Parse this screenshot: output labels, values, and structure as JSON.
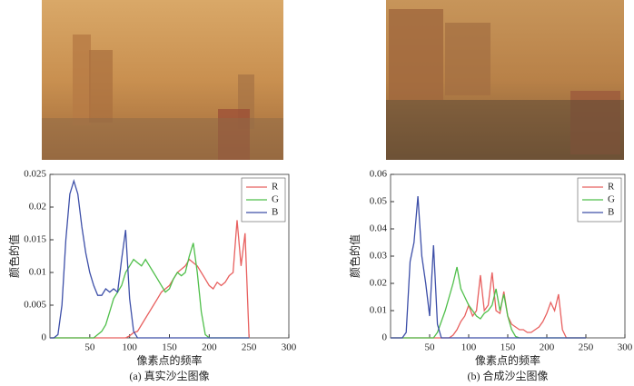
{
  "chart_data": [
    {
      "type": "line",
      "caption": "(a) 真实沙尘图像",
      "x_label": "像素点的频率",
      "y_label": "颜色的值",
      "x": [
        0,
        5,
        10,
        15,
        20,
        25,
        30,
        35,
        40,
        45,
        50,
        55,
        60,
        65,
        70,
        75,
        80,
        85,
        90,
        95,
        100,
        105,
        110,
        115,
        120,
        125,
        130,
        135,
        140,
        145,
        150,
        155,
        160,
        165,
        170,
        175,
        180,
        185,
        190,
        195,
        200,
        205,
        210,
        215,
        220,
        225,
        230,
        235,
        240,
        245,
        250
      ],
      "series": [
        {
          "name": "R",
          "color": "#e8605f",
          "values": [
            0,
            0,
            0,
            0,
            0,
            0,
            0,
            0,
            0,
            0,
            0,
            0,
            0,
            0,
            0,
            0,
            0,
            0,
            0,
            0,
            0.0003,
            0.0008,
            0.001,
            0.002,
            0.003,
            0.004,
            0.005,
            0.006,
            0.007,
            0.0075,
            0.008,
            0.009,
            0.01,
            0.0105,
            0.011,
            0.012,
            0.0115,
            0.011,
            0.01,
            0.009,
            0.008,
            0.0075,
            0.0085,
            0.008,
            0.0085,
            0.0095,
            0.01,
            0.018,
            0.011,
            0.016,
            0
          ]
        },
        {
          "name": "G",
          "color": "#4fbf4a",
          "values": [
            0,
            0,
            0,
            0,
            0,
            0,
            0,
            0,
            0,
            0,
            0,
            0,
            0.0005,
            0.001,
            0.002,
            0.004,
            0.006,
            0.007,
            0.008,
            0.01,
            0.011,
            0.012,
            0.0115,
            0.011,
            0.012,
            0.011,
            0.01,
            0.009,
            0.008,
            0.007,
            0.0075,
            0.009,
            0.01,
            0.0095,
            0.01,
            0.0125,
            0.0145,
            0.01,
            0.004,
            0.0005,
            0,
            0,
            0,
            0,
            0,
            0,
            0,
            0,
            0,
            0,
            0
          ]
        },
        {
          "name": "B",
          "color": "#3d4fa8",
          "values": [
            0,
            0,
            0.0005,
            0.005,
            0.015,
            0.022,
            0.024,
            0.022,
            0.017,
            0.013,
            0.01,
            0.008,
            0.0065,
            0.0065,
            0.0075,
            0.007,
            0.0075,
            0.007,
            0.012,
            0.0165,
            0.006,
            0.001,
            0,
            0,
            0,
            0,
            0,
            0,
            0,
            0,
            0,
            0,
            0,
            0,
            0,
            0,
            0,
            0,
            0,
            0,
            0,
            0,
            0,
            0,
            0,
            0,
            0,
            0,
            0,
            0,
            0
          ]
        }
      ],
      "xlim": [
        0,
        300
      ],
      "xticks": [
        50,
        100,
        150,
        200,
        250,
        300
      ],
      "ylim": [
        0,
        0.025
      ],
      "yticks": [
        0,
        0.005,
        0.01,
        0.015,
        0.02,
        0.025
      ],
      "legend": "upper right"
    },
    {
      "type": "line",
      "caption": "(b) 合成沙尘图像",
      "x_label": "像素点的频率",
      "y_label": "颜色的值",
      "x": [
        0,
        5,
        10,
        15,
        20,
        25,
        30,
        35,
        40,
        45,
        50,
        55,
        60,
        65,
        70,
        75,
        80,
        85,
        90,
        95,
        100,
        105,
        110,
        115,
        120,
        125,
        130,
        135,
        140,
        145,
        150,
        155,
        160,
        165,
        170,
        175,
        180,
        185,
        190,
        195,
        200,
        205,
        210,
        215,
        220,
        225,
        230,
        235,
        240,
        245,
        250
      ],
      "series": [
        {
          "name": "R",
          "color": "#e8605f",
          "values": [
            0,
            0,
            0,
            0,
            0,
            0,
            0,
            0,
            0,
            0,
            0,
            0,
            0,
            0,
            0,
            0,
            0.001,
            0.003,
            0.006,
            0.008,
            0.012,
            0.008,
            0.01,
            0.023,
            0.01,
            0.012,
            0.024,
            0.01,
            0.009,
            0.017,
            0.008,
            0.005,
            0.004,
            0.003,
            0.003,
            0.002,
            0.002,
            0.003,
            0.004,
            0.006,
            0.009,
            0.013,
            0.01,
            0.016,
            0.003,
            0,
            0,
            0,
            0,
            0,
            0
          ]
        },
        {
          "name": "G",
          "color": "#4fbf4a",
          "values": [
            0,
            0,
            0,
            0,
            0,
            0,
            0,
            0,
            0,
            0,
            0,
            0,
            0.002,
            0.006,
            0.01,
            0.015,
            0.02,
            0.026,
            0.018,
            0.015,
            0.012,
            0.01,
            0.008,
            0.007,
            0.009,
            0.01,
            0.012,
            0.018,
            0.01,
            0.016,
            0.008,
            0.003,
            0.0005,
            0,
            0,
            0,
            0,
            0,
            0,
            0,
            0,
            0,
            0,
            0,
            0,
            0,
            0,
            0,
            0,
            0,
            0
          ]
        },
        {
          "name": "B",
          "color": "#3d4fa8",
          "values": [
            0,
            0,
            0,
            0,
            0.002,
            0.028,
            0.035,
            0.052,
            0.03,
            0.02,
            0.008,
            0.034,
            0.005,
            0,
            0,
            0,
            0,
            0,
            0,
            0,
            0,
            0,
            0,
            0,
            0,
            0,
            0,
            0,
            0,
            0,
            0,
            0,
            0,
            0,
            0,
            0,
            0,
            0,
            0,
            0,
            0,
            0,
            0,
            0,
            0,
            0,
            0,
            0,
            0,
            0,
            0
          ]
        }
      ],
      "xlim": [
        0,
        300
      ],
      "xticks": [
        50,
        100,
        150,
        200,
        250,
        300
      ],
      "ylim": [
        0,
        0.06
      ],
      "yticks": [
        0,
        0.01,
        0.02,
        0.03,
        0.04,
        0.05,
        0.06
      ],
      "legend": "upper right"
    }
  ]
}
